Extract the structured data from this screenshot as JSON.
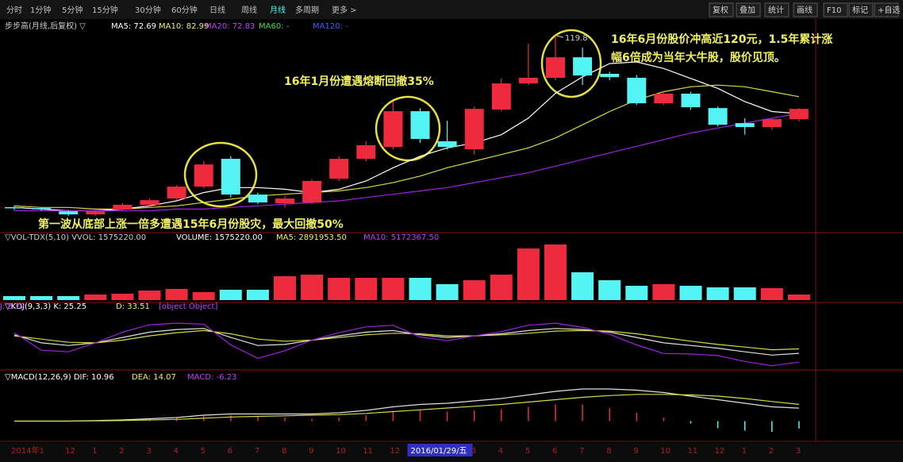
{
  "toolbar": {
    "periods": [
      "分时",
      "1分钟",
      "5分钟",
      "15分钟",
      "30分钟",
      "60分钟",
      "日线",
      "周线",
      "月线",
      "多周期",
      "更多 >"
    ],
    "active": 8,
    "buttons": [
      "复权",
      "叠加",
      "统计",
      "画线",
      "F10",
      "标记",
      "+自选"
    ]
  },
  "price_panel": {
    "headers": [
      {
        "text": "步步高(月线,后复权) ▽",
        "color": "#d0d0d0"
      },
      {
        "text": "MA5: 72.69",
        "color": "#ffffff"
      },
      {
        "text": "MA10: 82.99",
        "color": "#f0f060"
      },
      {
        "text": "MA20: 72.83",
        "color": "#c040ff"
      },
      {
        "text": "MA60: -",
        "color": "#40e040"
      },
      {
        "text": "MA120: -",
        "color": "#4060ff"
      }
    ],
    "ylim": [
      8,
      128
    ],
    "open": [
      16.2,
      15.6,
      13.7,
      11.8,
      14.7,
      17.6,
      21.4,
      28.6,
      45.4,
      23.8,
      18.5,
      19,
      33.4,
      45.4,
      52.6,
      74.2,
      56,
      51.2,
      75.2,
      91,
      94.4,
      106.8,
      96.8,
      94.4,
      79,
      84.8,
      76.1,
      67,
      64.6,
      69.4
    ],
    "close": [
      15.6,
      15,
      11.8,
      13.7,
      17.6,
      20.4,
      28.6,
      42,
      23.8,
      19,
      21.4,
      32,
      45.4,
      53.6,
      74.2,
      57.4,
      52.6,
      75.6,
      91,
      94.4,
      106.8,
      95.8,
      94.8,
      79,
      84.8,
      76.6,
      66,
      64.6,
      69.4,
      75.6
    ],
    "high": [
      17,
      16,
      14.5,
      14.5,
      18.5,
      21.5,
      29.5,
      44,
      47,
      25,
      23,
      33,
      47,
      56,
      80,
      76,
      68.4,
      77,
      94,
      115,
      119.8,
      112.6,
      98,
      96,
      86,
      86,
      77,
      70,
      70,
      76
    ],
    "low": [
      14.5,
      14,
      11,
      11,
      14,
      17,
      20.5,
      27.5,
      22,
      18,
      16,
      18,
      32,
      44,
      51,
      55,
      51,
      48,
      74,
      90,
      93,
      90,
      93,
      78,
      78,
      75,
      65,
      60,
      63,
      68
    ],
    "lines": [
      {
        "color": "#ffffff",
        "values": [
          16,
          15,
          14,
          14,
          15,
          17,
          20,
          25,
          28,
          28,
          27,
          25,
          27,
          32,
          40,
          47,
          52,
          55,
          60,
          70,
          85,
          95,
          103,
          104,
          100,
          94,
          88,
          80,
          74,
          72.69
        ]
      },
      {
        "color": "#d8d840",
        "values": [
          17,
          16,
          16,
          15,
          15,
          16,
          17,
          19,
          21,
          23,
          24,
          25,
          26,
          28,
          31,
          35,
          40,
          44,
          48,
          52,
          58,
          66,
          74,
          81,
          86,
          89,
          90,
          89,
          86,
          82.99
        ]
      },
      {
        "color": "#a020e0",
        "values": [
          14,
          14,
          14,
          14,
          14,
          14,
          15,
          15,
          16,
          17,
          18,
          19,
          20,
          22,
          24,
          26,
          28,
          31,
          34,
          37,
          41,
          45,
          49,
          53,
          57,
          61,
          64,
          67,
          70,
          72.83
        ]
      }
    ],
    "peak_label": "119.8",
    "annotations": [
      "16年6月份股价冲高近120元，1.5年累计涨",
      "幅6倍成为当年大牛股，股价见顶。",
      "16年1月份遭遇熔断回撤35%",
      "第一波从底部上涨一倍多遭遇15年6月份股灾，最大回撤50%"
    ]
  },
  "volume_panel": {
    "headers": [
      {
        "text": "▽VOL-TDX(5,10) VVOL: 1575220.00",
        "color": "#d0d0d0"
      },
      {
        "text": "VOLUME: 1575220.00",
        "color": "#ffffff"
      },
      {
        "text": "MA5: 2891953.50",
        "color": "#f0f060"
      },
      {
        "text": "MA10: 5172367.50",
        "color": "#c040ff"
      }
    ],
    "ylim": [
      0,
      18000000
    ],
    "values": [
      1125000,
      1125000,
      1125000,
      1575000,
      1800000,
      2700000,
      3150000,
      2250000,
      2925000,
      2925000,
      6750000,
      7200000,
      6300000,
      6300000,
      6300000,
      6300000,
      4500000,
      5625000,
      7200000,
      14625000,
      15750000,
      7875000,
      5625000,
      4050000,
      4500000,
      4050000,
      3600000,
      3600000,
      3375000,
      1575220
    ]
  },
  "kdj_panel": {
    "headers": [
      {
        "text": "▽KDJ(9,3,3) K: 25.25",
        "color": "#ffffff"
      },
      {
        "text": "D: 33.51",
        "color": "#f0f060"
      },
      {
        "text": "J: 8.72",
        "color": "#c040ff"
      }
    ],
    "ylim": [
      0,
      100
    ],
    "lines": [
      {
        "color": "#e0e0e0",
        "values": [
          60,
          45,
          40,
          45,
          55,
          65,
          70,
          72,
          55,
          40,
          42,
          50,
          58,
          65,
          68,
          60,
          55,
          58,
          62,
          68,
          72,
          70,
          65,
          55,
          45,
          40,
          35,
          28,
          22,
          25.25
        ]
      },
      {
        "color": "#d8d840",
        "values": [
          58,
          52,
          46,
          45,
          50,
          58,
          64,
          68,
          62,
          52,
          48,
          50,
          55,
          60,
          63,
          62,
          58,
          58,
          60,
          63,
          67,
          68,
          67,
          62,
          55,
          48,
          42,
          37,
          32,
          33.51
        ]
      },
      {
        "color": "#a020e0",
        "values": [
          64,
          31,
          28,
          45,
          65,
          79,
          82,
          80,
          41,
          16,
          30,
          50,
          64,
          75,
          78,
          56,
          49,
          58,
          66,
          78,
          82,
          74,
          61,
          41,
          25,
          24,
          21,
          10,
          2,
          8.72
        ]
      }
    ]
  },
  "macd_panel": {
    "headers": [
      {
        "text": "▽MACD(12,26,9) DIF: 10.96",
        "color": "#ffffff"
      },
      {
        "text": "DEA: 14.07",
        "color": "#f0f060"
      },
      {
        "text": "MACD: -6.23",
        "color": "#c040ff"
      }
    ],
    "ylim": [
      -15,
      35
    ],
    "macd": [
      0,
      0,
      0,
      0.6,
      1,
      2,
      3,
      5,
      5,
      4,
      3,
      2,
      3,
      5,
      8,
      9,
      8,
      9,
      10,
      12,
      14,
      14,
      11,
      7,
      3,
      -2,
      -6,
      -8,
      -9,
      -6.23
    ],
    "lines": [
      {
        "color": "#e0e0e0",
        "values": [
          0,
          0,
          0,
          0.5,
          1,
          2,
          3,
          5,
          6,
          6,
          6,
          6,
          7,
          9,
          12,
          14,
          15,
          17,
          19,
          22,
          25,
          27,
          27,
          26,
          24,
          21,
          18,
          15,
          12,
          10.96
        ]
      },
      {
        "color": "#d8d840",
        "values": [
          0,
          0,
          0,
          0.2,
          0.5,
          1,
          1.5,
          2.5,
          3.5,
          4,
          4.5,
          5,
          5.5,
          6.5,
          8,
          9.5,
          11,
          12.5,
          14,
          16,
          18,
          20,
          21.5,
          22.5,
          22.5,
          22,
          21,
          19,
          16.5,
          14.07
        ]
      }
    ]
  },
  "x_labels": [
    "2014年1",
    null,
    "12",
    "1",
    "2",
    "3",
    "4",
    "5",
    "6",
    "7",
    "8",
    "9",
    "10",
    "11",
    "12",
    "2016/01/29/五",
    null,
    "3",
    "4",
    "5",
    "6",
    "7",
    "8",
    "9",
    "10",
    "11",
    "12",
    "1",
    "2",
    "3"
  ]
}
